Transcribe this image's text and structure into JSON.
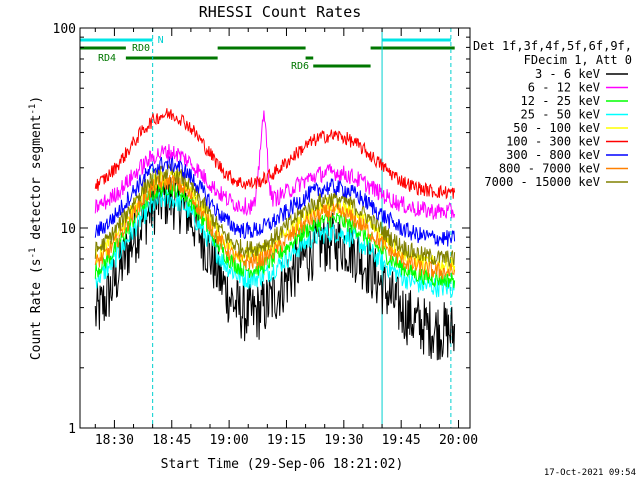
{
  "chart_data": {
    "type": "line",
    "title": "RHESSI Count Rates",
    "xlabel": "Start Time (29-Sep-06 18:21:02)",
    "ylabel_main": "Count Rate (s",
    "ylabel_sup1": "-1",
    "ylabel_mid": " detector segment",
    "ylabel_sup2": "-1",
    "ylabel_end": ")",
    "yscale": "log",
    "ylim": [
      1,
      100
    ],
    "xlim_minutes": [
      18.35,
      20.05
    ],
    "x_ticks": [
      "18:30",
      "18:45",
      "19:00",
      "19:15",
      "19:30",
      "19:45",
      "20:00"
    ],
    "y_ticks": [
      "1",
      "10",
      "100"
    ],
    "legend": {
      "header1": "Det 1f,3f,4f,5f,6f,9f,",
      "header2": "FDecim 1, Att 0",
      "entries": [
        {
          "label": "3 - 6 keV",
          "color": "#000000"
        },
        {
          "label": "6 - 12 keV",
          "color": "#ff00ff"
        },
        {
          "label": "12 - 25 keV",
          "color": "#00ff00"
        },
        {
          "label": "25 - 50 keV",
          "color": "#00ffff"
        },
        {
          "label": "50 - 100 keV",
          "color": "#ffff00"
        },
        {
          "label": "100 - 300 keV",
          "color": "#ff0000"
        },
        {
          "label": "300 - 800 keV",
          "color": "#0000ff"
        },
        {
          "label": "800 - 7000 keV",
          "color": "#ff8000"
        },
        {
          "label": "7000 - 15000 keV",
          "color": "#808000"
        }
      ]
    },
    "annotations": {
      "n_label": "N",
      "rd0_label": "RD0",
      "rd4_label": "RD4",
      "rd6_label": "RD6"
    },
    "night_markers": [
      "18:21",
      "18:40",
      "19:40",
      "19:58"
    ],
    "attenuator_bars": [
      {
        "start": "18:21",
        "end": "18:33",
        "row": "top"
      },
      {
        "start": "18:33",
        "end": "18:57",
        "row": "low"
      },
      {
        "start": "18:57",
        "end": "19:20",
        "row": "top"
      },
      {
        "start": "19:20",
        "end": "19:22",
        "row": "mid"
      },
      {
        "start": "19:22",
        "end": "19:37",
        "row": "lower"
      },
      {
        "start": "19:37",
        "end": "19:59",
        "row": "top"
      }
    ],
    "series": [
      {
        "name": "3 - 6 keV",
        "color": "#000000",
        "peak1": 14,
        "peak2": 8.5,
        "base": 3.0,
        "noise": 0.35
      },
      {
        "name": "6 - 12 keV",
        "color": "#ff00ff",
        "peak1": 24,
        "peak2": 19,
        "base": 12,
        "noise": 0.1
      },
      {
        "name": "12 - 25 keV",
        "color": "#00ff00",
        "peak1": 16,
        "peak2": 11,
        "base": 5.5,
        "noise": 0.1
      },
      {
        "name": "25 - 50 keV",
        "color": "#00ffff",
        "peak1": 14,
        "peak2": 9.5,
        "base": 5.0,
        "noise": 0.12
      },
      {
        "name": "50 - 100 keV",
        "color": "#ffff00",
        "peak1": 18,
        "peak2": 13,
        "base": 6.5,
        "noise": 0.1
      },
      {
        "name": "100 - 300 keV",
        "color": "#ff0000",
        "peak1": 37,
        "peak2": 29,
        "base": 15,
        "noise": 0.08
      },
      {
        "name": "300 - 800 keV",
        "color": "#0000ff",
        "peak1": 21,
        "peak2": 16,
        "base": 8.8,
        "noise": 0.1
      },
      {
        "name": "800 - 7000 keV",
        "color": "#ff8000",
        "peak1": 17,
        "peak2": 12,
        "base": 6.0,
        "noise": 0.1
      },
      {
        "name": "7000 - 15000 keV",
        "color": "#808000",
        "peak1": 19,
        "peak2": 14,
        "base": 7.0,
        "noise": 0.1
      }
    ]
  },
  "footer_timestamp": "17-Oct-2021 09:54"
}
